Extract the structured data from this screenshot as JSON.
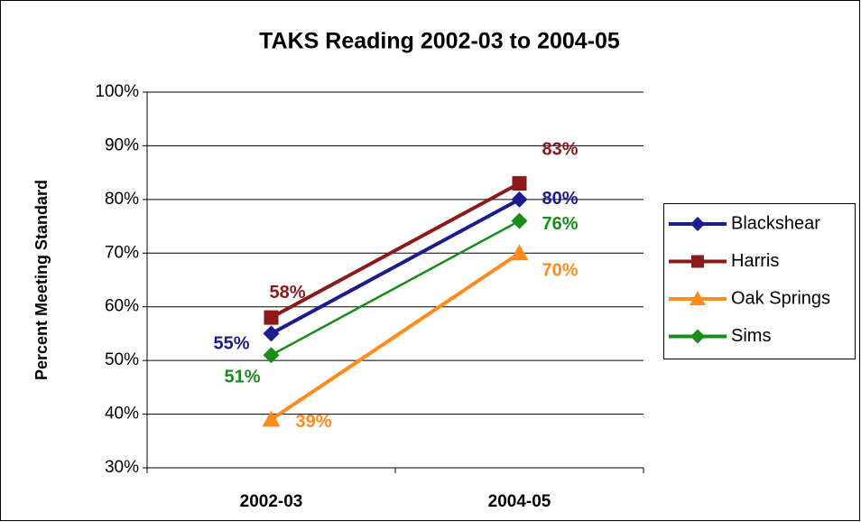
{
  "chart_data": {
    "type": "line",
    "title": "TAKS Reading 2002-03 to 2004-05",
    "y_label": "Percent Meeting Standard",
    "categories": [
      "2002-03",
      "2004-05"
    ],
    "ylim": [
      30,
      100
    ],
    "yticks": [
      {
        "value": 30,
        "label": "30%"
      },
      {
        "value": 40,
        "label": "40%"
      },
      {
        "value": 50,
        "label": "50%"
      },
      {
        "value": 60,
        "label": "60%"
      },
      {
        "value": 70,
        "label": "70%"
      },
      {
        "value": 80,
        "label": "80%"
      },
      {
        "value": 90,
        "label": "90%"
      },
      {
        "value": 100,
        "label": "100%"
      }
    ],
    "grid": true,
    "legend": "right",
    "series": [
      {
        "name": "Blackshear",
        "color": "#1c1c8c",
        "marker": "diamond",
        "values": [
          55,
          80
        ],
        "value_labels": [
          "55%",
          "80%"
        ]
      },
      {
        "name": "Harris",
        "color": "#8b1a1a",
        "marker": "square",
        "values": [
          58,
          83
        ],
        "value_labels": [
          "58%",
          "83%"
        ]
      },
      {
        "name": "Oak Springs",
        "color": "#ff8c1a",
        "marker": "triangle",
        "values": [
          39,
          70
        ],
        "value_labels": [
          "39%",
          "70%"
        ]
      },
      {
        "name": "Sims",
        "color": "#1a8c1a",
        "marker": "diamond",
        "values": [
          51,
          76
        ],
        "value_labels": [
          "51%",
          "76%"
        ]
      }
    ]
  }
}
